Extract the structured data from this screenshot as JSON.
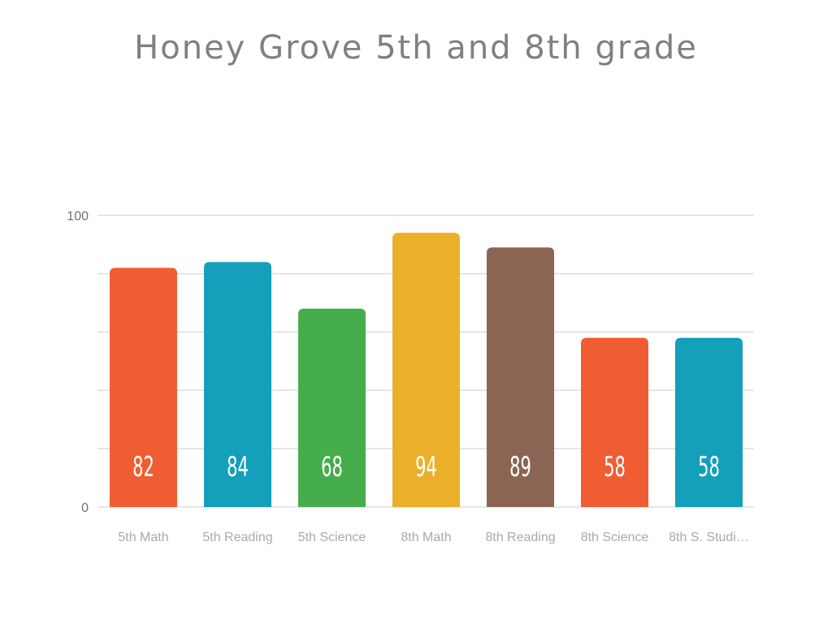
{
  "chart_data": {
    "type": "bar",
    "title": "Honey Grove 5th and 8th grade",
    "xlabel": "",
    "ylabel": "",
    "categories": [
      "5th Math",
      "5th Reading",
      "5th Science",
      "8th Math",
      "8th Reading",
      "8th Science",
      "8th S. Studi…"
    ],
    "values": [
      82,
      84,
      68,
      94,
      89,
      58,
      58
    ],
    "colors": [
      "#f05d33",
      "#149fbb",
      "#46ad4c",
      "#ebb029",
      "#8b6553",
      "#f05d33",
      "#149fbb"
    ],
    "ylim": [
      0,
      100
    ],
    "y_ticks": [
      "0",
      "100"
    ],
    "gridlines": [
      0,
      20,
      40,
      60,
      80,
      100
    ],
    "grid": true,
    "legend": "none",
    "data_labels": true
  }
}
